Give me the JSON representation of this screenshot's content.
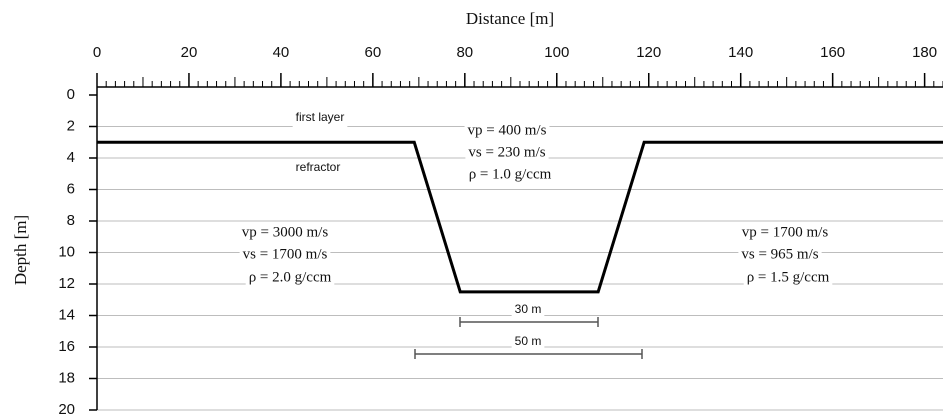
{
  "chart_data": {
    "type": "line",
    "title": "Distance [m]",
    "y_label": "Depth [m]",
    "x": [
      0,
      69,
      79,
      109,
      119,
      184
    ],
    "values": [
      3,
      3,
      12.5,
      12.5,
      3,
      3
    ],
    "color": "#000000",
    "xlim": [
      0,
      184
    ],
    "xticks": [
      0,
      20,
      40,
      60,
      80,
      100,
      120,
      140,
      160,
      180
    ],
    "xticks_minor": [
      0,
      2,
      4,
      6,
      8,
      10,
      12,
      14,
      16,
      18,
      20,
      22,
      24,
      26,
      28,
      30,
      32,
      34,
      36,
      38,
      40,
      42,
      44,
      46,
      48,
      50,
      52,
      54,
      56,
      58,
      60,
      62,
      64,
      66,
      68,
      70,
      72,
      74,
      76,
      78,
      80,
      82,
      84,
      86,
      88,
      90,
      92,
      94,
      96,
      98,
      100,
      102,
      104,
      106,
      108,
      110,
      112,
      114,
      116,
      118,
      120,
      122,
      124,
      126,
      128,
      130,
      132,
      134,
      136,
      138,
      140,
      142,
      144,
      146,
      148,
      150,
      152,
      154,
      156,
      158,
      160,
      162,
      164,
      166,
      168,
      170,
      172,
      174,
      176,
      178,
      180,
      182,
      184
    ],
    "ylim": [
      0,
      20
    ],
    "yticks": [
      0,
      2,
      4,
      6,
      8,
      10,
      12,
      14,
      16,
      18,
      20
    ],
    "grid": true,
    "annotations": [
      "first layer",
      "refractor",
      "vp = 400 m/s",
      "vs = 230 m/s",
      "ρ = 1.0 g/ccm",
      "vp = 3000 m/s",
      "vs = 1700 m/s",
      "ρ = 2.0 g/ccm",
      "vp = 1700 m/s",
      "vs = 965 m/s",
      "ρ = 1.5 g/ccm",
      "30 m",
      "50 m"
    ]
  }
}
